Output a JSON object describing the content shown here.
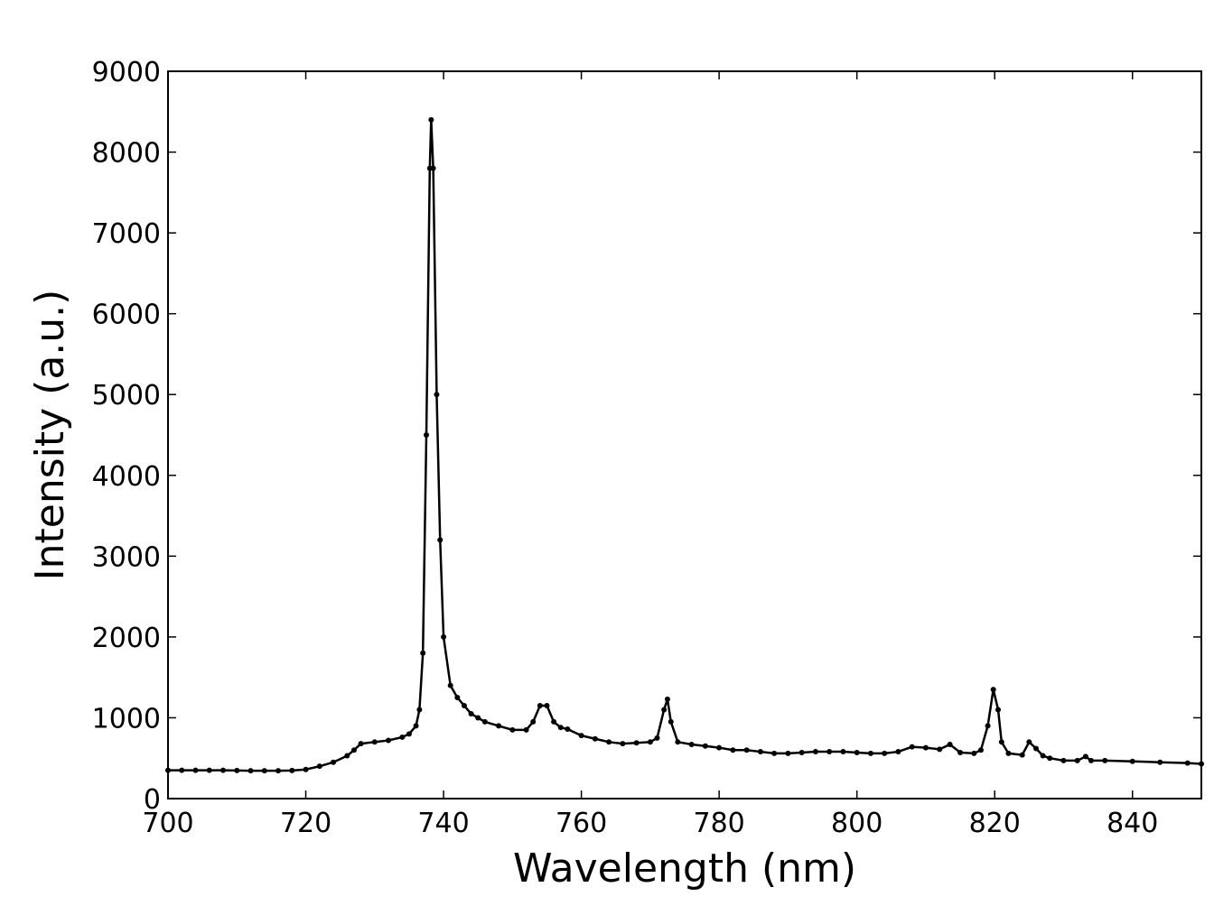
{
  "chart_data": {
    "type": "line",
    "x_label": "Wavelength (nm)",
    "y_label": "Intensity (a.u.)",
    "xlim": [
      700,
      850
    ],
    "ylim": [
      0,
      9000
    ],
    "xticks": [
      700,
      720,
      740,
      760,
      780,
      800,
      820,
      840
    ],
    "yticks": [
      0,
      1000,
      2000,
      3000,
      4000,
      5000,
      6000,
      7000,
      8000,
      9000
    ],
    "series": [
      {
        "color": "#000000",
        "x": [
          700,
          702,
          704,
          706,
          708,
          710,
          712,
          714,
          716,
          718,
          720,
          722,
          724,
          726,
          727,
          728,
          730,
          732,
          734,
          735,
          736,
          736.5,
          737,
          737.5,
          738,
          738.2,
          738.5,
          739,
          739.5,
          740,
          741,
          742,
          743,
          744,
          745,
          746,
          748,
          750,
          752,
          753,
          754,
          755,
          756,
          757,
          758,
          760,
          762,
          764,
          766,
          768,
          770,
          771,
          772,
          772.5,
          773,
          774,
          776,
          778,
          780,
          782,
          784,
          786,
          788,
          790,
          792,
          794,
          796,
          798,
          800,
          802,
          804,
          806,
          808,
          810,
          812,
          813.5,
          815,
          817,
          818,
          819,
          819.8,
          820.5,
          821,
          822,
          824,
          825,
          826,
          827,
          828,
          830,
          832,
          833.2,
          834,
          836,
          840,
          844,
          848,
          850
        ],
        "values": [
          350,
          350,
          350,
          350,
          350,
          348,
          345,
          345,
          345,
          348,
          360,
          400,
          450,
          530,
          600,
          680,
          700,
          720,
          760,
          800,
          900,
          1100,
          1800,
          4500,
          7800,
          8400,
          7800,
          5000,
          3200,
          2000,
          1400,
          1250,
          1150,
          1050,
          1000,
          950,
          900,
          850,
          850,
          950,
          1150,
          1150,
          950,
          880,
          860,
          780,
          740,
          700,
          680,
          690,
          700,
          750,
          1100,
          1230,
          950,
          700,
          670,
          650,
          630,
          600,
          600,
          580,
          560,
          560,
          570,
          580,
          580,
          580,
          570,
          560,
          560,
          580,
          640,
          630,
          610,
          670,
          570,
          560,
          600,
          900,
          1350,
          1100,
          700,
          560,
          540,
          700,
          620,
          530,
          500,
          470,
          470,
          520,
          470,
          470,
          460,
          450,
          440,
          430
        ]
      }
    ]
  }
}
